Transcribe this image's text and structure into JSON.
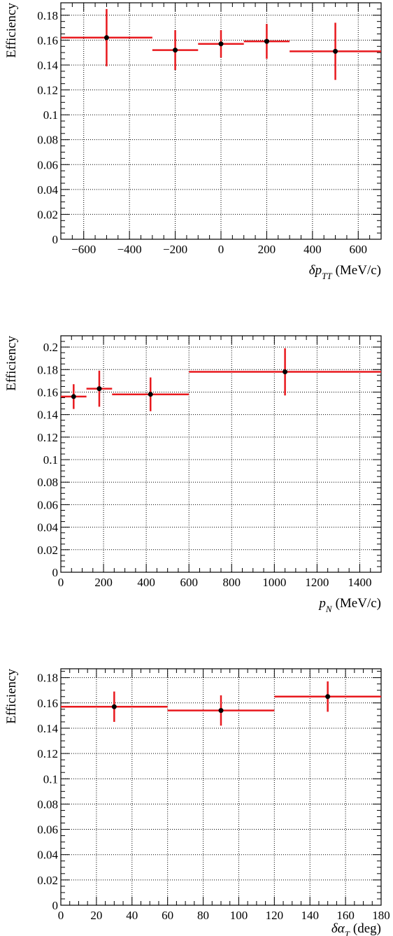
{
  "colors": {
    "marker": "#000000",
    "error_bar": "#e8191e",
    "grid": "#000000",
    "frame": "#000000"
  },
  "chart_data": [
    {
      "type": "scatter",
      "ylabel": "Efficiency",
      "xlabel": {
        "symbol": "δp",
        "subscript": "TT",
        "unit": "(MeV/c)"
      },
      "xlim": [
        -700,
        700
      ],
      "ylim": [
        0,
        0.19
      ],
      "xticks": [
        -600,
        -400,
        -200,
        0,
        200,
        400,
        600
      ],
      "xtick_labels": [
        "−600",
        "−400",
        "−200",
        "0",
        "200",
        "400",
        "600"
      ],
      "yticks": [
        0,
        0.02,
        0.04,
        0.06,
        0.08,
        0.1,
        0.12,
        0.14,
        0.16,
        0.18
      ],
      "ytick_labels": [
        "0",
        "0.02",
        "0.04",
        "0.06",
        "0.08",
        "0.1",
        "0.12",
        "0.14",
        "0.16",
        "0.18"
      ],
      "x_minor_step": 50,
      "y_minor_step": 0.005,
      "grid": true,
      "points": [
        {
          "x": -500,
          "x_low": -700,
          "x_high": -300,
          "y": 0.162,
          "y_err": 0.023
        },
        {
          "x": -200,
          "x_low": -300,
          "x_high": -100,
          "y": 0.152,
          "y_err": 0.016
        },
        {
          "x": 0,
          "x_low": -100,
          "x_high": 100,
          "y": 0.157,
          "y_err": 0.011
        },
        {
          "x": 200,
          "x_low": 100,
          "x_high": 300,
          "y": 0.159,
          "y_err": 0.014
        },
        {
          "x": 500,
          "x_low": 300,
          "x_high": 700,
          "y": 0.151,
          "y_err": 0.023
        }
      ]
    },
    {
      "type": "scatter",
      "ylabel": "Efficiency",
      "xlabel": {
        "symbol": "p",
        "subscript": "N",
        "unit": "(MeV/c)"
      },
      "xlim": [
        0,
        1500
      ],
      "ylim": [
        0,
        0.21
      ],
      "xticks": [
        0,
        200,
        400,
        600,
        800,
        1000,
        1200,
        1400
      ],
      "xtick_labels": [
        "0",
        "200",
        "400",
        "600",
        "800",
        "1000",
        "1200",
        "1400"
      ],
      "yticks": [
        0,
        0.02,
        0.04,
        0.06,
        0.08,
        0.1,
        0.12,
        0.14,
        0.16,
        0.18,
        0.2
      ],
      "ytick_labels": [
        "0",
        "0.02",
        "0.04",
        "0.06",
        "0.08",
        "0.1",
        "0.12",
        "0.14",
        "0.16",
        "0.18",
        "0.2"
      ],
      "x_minor_step": 50,
      "y_minor_step": 0.005,
      "grid": true,
      "points": [
        {
          "x": 60,
          "x_low": 0,
          "x_high": 120,
          "y": 0.156,
          "y_err": 0.011
        },
        {
          "x": 180,
          "x_low": 120,
          "x_high": 240,
          "y": 0.163,
          "y_err": 0.016
        },
        {
          "x": 420,
          "x_low": 240,
          "x_high": 600,
          "y": 0.158,
          "y_err": 0.015
        },
        {
          "x": 1050,
          "x_low": 600,
          "x_high": 1500,
          "y": 0.178,
          "y_err": 0.021
        }
      ]
    },
    {
      "type": "scatter",
      "ylabel": "Efficiency",
      "xlabel": {
        "symbol": "δα",
        "subscript": "T",
        "unit": "(deg)"
      },
      "xlim": [
        0,
        180
      ],
      "ylim": [
        0,
        0.187
      ],
      "xticks": [
        0,
        20,
        40,
        60,
        80,
        100,
        120,
        140,
        160,
        180
      ],
      "xtick_labels": [
        "0",
        "20",
        "40",
        "60",
        "80",
        "100",
        "120",
        "140",
        "160",
        "180"
      ],
      "yticks": [
        0,
        0.02,
        0.04,
        0.06,
        0.08,
        0.1,
        0.12,
        0.14,
        0.16,
        0.18
      ],
      "ytick_labels": [
        "0",
        "0.02",
        "0.04",
        "0.06",
        "0.08",
        "0.1",
        "0.12",
        "0.14",
        "0.16",
        "0.18"
      ],
      "x_minor_step": 5,
      "y_minor_step": 0.005,
      "grid": true,
      "points": [
        {
          "x": 30,
          "x_low": 0,
          "x_high": 60,
          "y": 0.157,
          "y_err": 0.012
        },
        {
          "x": 90,
          "x_low": 60,
          "x_high": 120,
          "y": 0.154,
          "y_err": 0.012
        },
        {
          "x": 150,
          "x_low": 120,
          "x_high": 180,
          "y": 0.165,
          "y_err": 0.012
        }
      ]
    }
  ]
}
